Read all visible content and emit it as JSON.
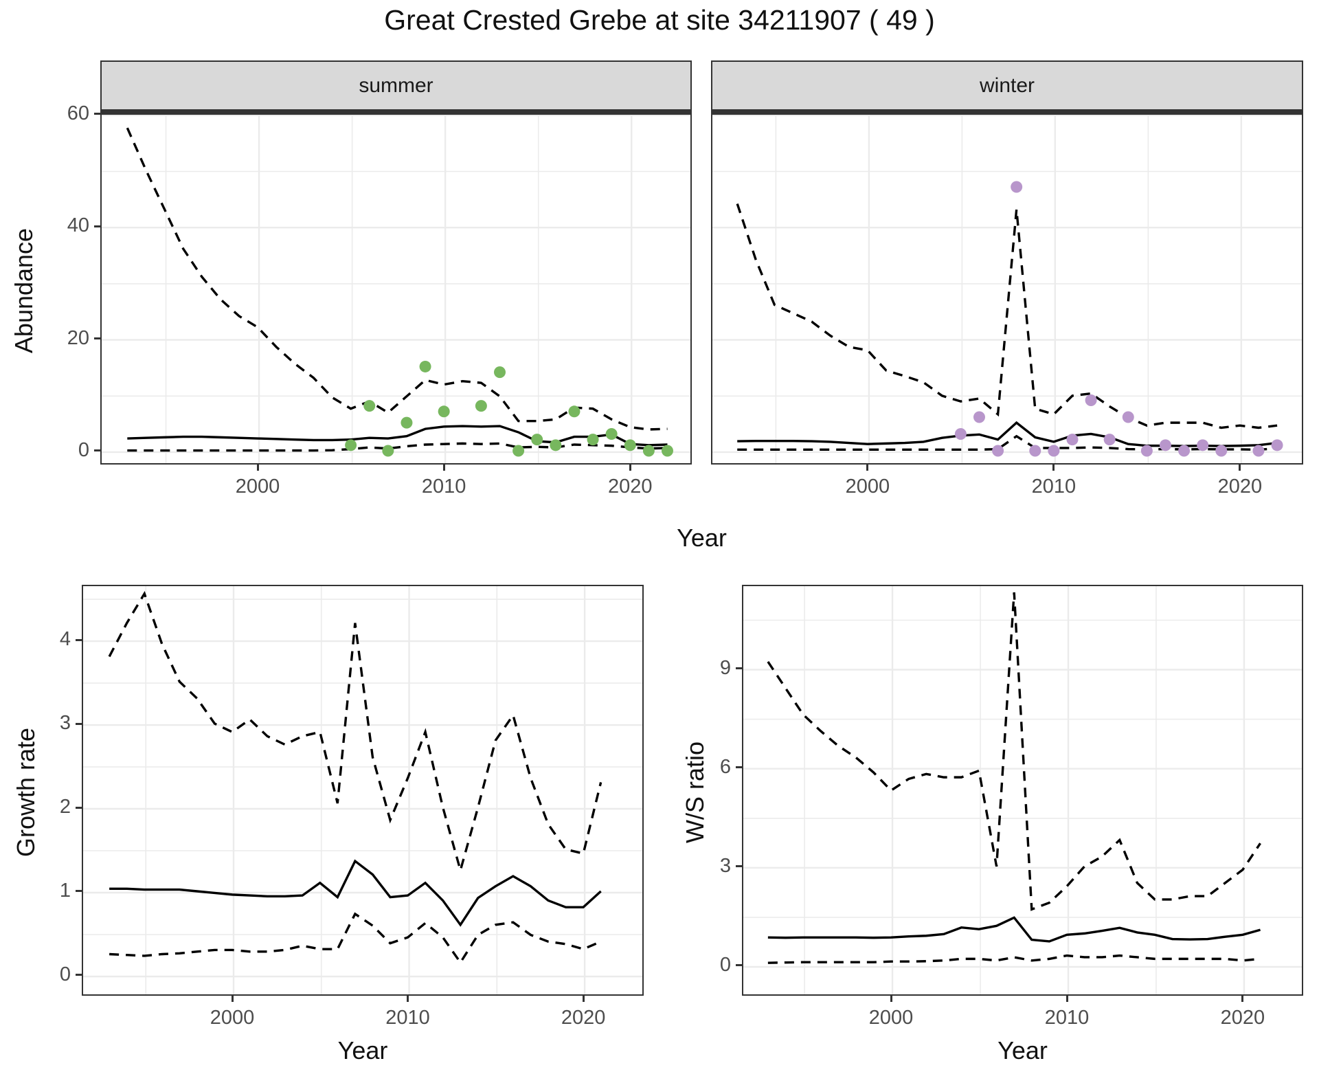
{
  "title": "Great Crested Grebe at site 34211907 ( 49 )",
  "facets": [
    {
      "label": "summer"
    },
    {
      "label": "winter"
    }
  ],
  "axis_titles": {
    "x": "Year",
    "y_abundance": "Abundance",
    "y_growth": "Growth rate",
    "y_ws": "W/S ratio"
  },
  "colors": {
    "summer_point": "#77b75e",
    "winter_point": "#b896cb",
    "line": "#000000",
    "strip_bg": "#d9d9d9",
    "panel_border": "#333333",
    "grid": "#ebebeb",
    "tick_text": "#4d4d4d"
  },
  "chart_data": [
    {
      "id": "abundance-summer",
      "type": "line",
      "facet": "summer",
      "ylabel": "Abundance",
      "xlabel": "Year",
      "xlim": [
        1991.55,
        2023.31
      ],
      "ylim": [
        -2.45,
        60.1
      ],
      "x_ticks": [
        2000,
        2010,
        2020
      ],
      "x_minor": [
        1995,
        2005,
        2015
      ],
      "y_ticks": [
        0,
        20,
        40,
        60
      ],
      "y_minor": [
        10,
        30,
        50
      ],
      "series": [
        {
          "name": "upper_ci",
          "style": "dashed",
          "x": [
            1993,
            1994,
            1995,
            1996,
            1997,
            1998,
            1999,
            2000,
            2001,
            2002,
            2003,
            2004,
            2005,
            2006,
            2007,
            2008,
            2009,
            2010,
            2011,
            2012,
            2013,
            2014,
            2015,
            2016,
            2017,
            2018,
            2019,
            2020,
            2021,
            2022
          ],
          "y": [
            57.5,
            50,
            43,
            36,
            31,
            27,
            24,
            22,
            18.5,
            15.5,
            13,
            9.5,
            7.5,
            8.8,
            6.8,
            9.7,
            12.6,
            11.8,
            12.4,
            12.1,
            9.7,
            5.3,
            5.3,
            5.6,
            7.7,
            7.5,
            5.6,
            4.2,
            3.8,
            3.9
          ]
        },
        {
          "name": "estimate",
          "style": "solid",
          "x": [
            1993,
            1994,
            1995,
            1996,
            1997,
            1998,
            1999,
            2000,
            2001,
            2002,
            2003,
            2004,
            2005,
            2006,
            2007,
            2008,
            2009,
            2010,
            2011,
            2012,
            2013,
            2014,
            2015,
            2016,
            2017,
            2018,
            2019,
            2020,
            2021,
            2022
          ],
          "y": [
            2.2,
            2.3,
            2.4,
            2.5,
            2.5,
            2.4,
            2.3,
            2.2,
            2.1,
            2.0,
            1.9,
            1.9,
            2.0,
            2.3,
            2.2,
            2.6,
            3.9,
            4.3,
            4.4,
            4.3,
            4.4,
            3.3,
            1.7,
            1.5,
            2.5,
            2.5,
            2.9,
            1.2,
            1.0,
            1.1
          ]
        },
        {
          "name": "lower_ci",
          "style": "dashed",
          "x": [
            1993,
            1994,
            1995,
            1996,
            1997,
            1998,
            1999,
            2000,
            2001,
            2002,
            2003,
            2004,
            2005,
            2006,
            2007,
            2008,
            2009,
            2010,
            2011,
            2012,
            2013,
            2014,
            2015,
            2016,
            2017,
            2018,
            2019,
            2020,
            2021,
            2022
          ],
          "y": [
            0.05,
            0.05,
            0.05,
            0.05,
            0.05,
            0.05,
            0.05,
            0.05,
            0.05,
            0.05,
            0.05,
            0.1,
            0.3,
            0.6,
            0.4,
            0.8,
            1.1,
            1.2,
            1.3,
            1.2,
            1.3,
            0.6,
            0.7,
            0.6,
            1.1,
            1.0,
            0.9,
            0.6,
            0.4,
            0.5
          ]
        }
      ],
      "points": {
        "name": "observed_summer_counts",
        "color_key": "summer_point",
        "x": [
          2005,
          2006,
          2007,
          2008,
          2009,
          2010,
          2012,
          2013,
          2014,
          2015,
          2016,
          2017,
          2018,
          2019,
          2020,
          2021,
          2022
        ],
        "y": [
          1,
          8,
          0,
          5,
          15,
          7,
          8,
          14,
          0,
          2,
          1,
          7,
          2,
          3,
          1,
          0,
          0
        ]
      }
    },
    {
      "id": "abundance-winter",
      "type": "line",
      "facet": "winter",
      "ylabel": "Abundance",
      "xlabel": "Year",
      "xlim": [
        1991.59,
        2023.4
      ],
      "ylim": [
        -2.45,
        60.1
      ],
      "x_ticks": [
        2000,
        2010,
        2020
      ],
      "x_minor": [
        1995,
        2005,
        2015
      ],
      "y_ticks": [
        0,
        20,
        40,
        60
      ],
      "y_minor": [
        10,
        30,
        50
      ],
      "series": [
        {
          "name": "upper_ci",
          "style": "dashed",
          "x": [
            1993,
            1994,
            1995,
            1996,
            1997,
            1998,
            1999,
            2000,
            2001,
            2002,
            2003,
            2004,
            2005,
            2006,
            2007,
            2008,
            2009,
            2010,
            2011,
            2012,
            2013,
            2014,
            2015,
            2016,
            2017,
            2018,
            2019,
            2020,
            2021,
            2022
          ],
          "y": [
            44,
            34,
            26,
            24.5,
            23,
            20.5,
            18.5,
            17.9,
            14.3,
            13.3,
            12.2,
            9.8,
            8.8,
            9.3,
            6.5,
            43,
            7.5,
            6.5,
            9.8,
            10.2,
            7.9,
            5.9,
            4.5,
            5.0,
            5.0,
            5.0,
            4.1,
            4.5,
            4.1,
            4.5
          ]
        },
        {
          "name": "estimate",
          "style": "solid",
          "x": [
            1993,
            1994,
            1995,
            1996,
            1997,
            1998,
            1999,
            2000,
            2001,
            2002,
            2003,
            2004,
            2005,
            2006,
            2007,
            2008,
            2009,
            2010,
            2011,
            2012,
            2013,
            2014,
            2015,
            2016,
            2017,
            2018,
            2019,
            2020,
            2021,
            2022
          ],
          "y": [
            1.7,
            1.75,
            1.75,
            1.75,
            1.7,
            1.6,
            1.4,
            1.2,
            1.3,
            1.4,
            1.6,
            2.3,
            2.7,
            2.9,
            2.0,
            5.0,
            2.4,
            1.6,
            2.7,
            3.0,
            2.4,
            1.2,
            0.9,
            0.9,
            0.85,
            0.9,
            0.85,
            0.9,
            1.0,
            1.4
          ]
        },
        {
          "name": "lower_ci",
          "style": "dashed",
          "x": [
            1993,
            1994,
            1995,
            1996,
            1997,
            1998,
            1999,
            2000,
            2001,
            2002,
            2003,
            2004,
            2005,
            2006,
            2007,
            2008,
            2009,
            2010,
            2011,
            2012,
            2013,
            2014,
            2015,
            2016,
            2017,
            2018,
            2019,
            2020,
            2021,
            2022
          ],
          "y": [
            0.2,
            0.2,
            0.2,
            0.2,
            0.2,
            0.2,
            0.2,
            0.2,
            0.2,
            0.2,
            0.2,
            0.2,
            0.2,
            0.2,
            0.3,
            2.6,
            0.5,
            0.5,
            0.5,
            0.6,
            0.5,
            0.3,
            0.25,
            0.3,
            0.25,
            0.3,
            0.25,
            0.25,
            0.2,
            0.4
          ]
        }
      ],
      "points": {
        "name": "observed_winter_counts",
        "color_key": "winter_point",
        "x": [
          2005,
          2006,
          2007,
          2008,
          2009,
          2010,
          2011,
          2012,
          2013,
          2014,
          2015,
          2016,
          2017,
          2018,
          2019,
          2021,
          2022
        ],
        "y": [
          3,
          6,
          0,
          47,
          0,
          0,
          2,
          9,
          2,
          6,
          0,
          1,
          0,
          1,
          0,
          0,
          1
        ]
      }
    },
    {
      "id": "growth-rate",
      "type": "line",
      "ylabel": "Growth rate",
      "xlabel": "Year",
      "xlim": [
        1991.43,
        2023.44
      ],
      "ylim": [
        -0.246,
        4.656
      ],
      "x_ticks": [
        2000,
        2010,
        2020
      ],
      "x_minor": [
        1995,
        2005,
        2015
      ],
      "y_ticks": [
        0,
        1,
        2,
        3,
        4
      ],
      "y_minor": [
        0.5,
        1.5,
        2.5,
        3.5,
        4.5
      ],
      "series": [
        {
          "name": "upper_ci",
          "style": "dashed",
          "x": [
            1993,
            1994,
            1995,
            1996,
            1997,
            1998,
            1999,
            2000,
            2001,
            2002,
            2003,
            2004,
            2005,
            2006,
            2007,
            2008,
            2009,
            2010,
            2011,
            2012,
            2013,
            2014,
            2015,
            2016,
            2017,
            2018,
            2019,
            2020,
            2021
          ],
          "y": [
            3.8,
            4.2,
            4.55,
            3.95,
            3.5,
            3.3,
            3.0,
            2.9,
            3.05,
            2.85,
            2.75,
            2.85,
            2.9,
            2.05,
            4.2,
            2.6,
            1.85,
            2.35,
            2.9,
            2.0,
            1.25,
            2.0,
            2.8,
            3.1,
            2.35,
            1.8,
            1.5,
            1.45,
            2.3
          ]
        },
        {
          "name": "estimate",
          "style": "solid",
          "x": [
            1993,
            1994,
            1995,
            1996,
            1997,
            1998,
            1999,
            2000,
            2001,
            2002,
            2003,
            2004,
            2005,
            2006,
            2007,
            2008,
            2009,
            2010,
            2011,
            2012,
            2013,
            2014,
            2015,
            2016,
            2017,
            2018,
            2019,
            2020,
            2021
          ],
          "y": [
            1.03,
            1.03,
            1.02,
            1.02,
            1.02,
            1.0,
            0.98,
            0.96,
            0.95,
            0.94,
            0.94,
            0.95,
            1.1,
            0.93,
            1.36,
            1.2,
            0.93,
            0.95,
            1.1,
            0.89,
            0.6,
            0.92,
            1.06,
            1.18,
            1.06,
            0.89,
            0.81,
            0.81,
            1.0
          ]
        },
        {
          "name": "lower_ci",
          "style": "dashed",
          "x": [
            1993,
            1994,
            1995,
            1996,
            1997,
            1998,
            1999,
            2000,
            2001,
            2002,
            2003,
            2004,
            2005,
            2006,
            2007,
            2008,
            2009,
            2010,
            2011,
            2012,
            2013,
            2014,
            2015,
            2016,
            2017,
            2018,
            2019,
            2020,
            2021
          ],
          "y": [
            0.25,
            0.24,
            0.23,
            0.25,
            0.26,
            0.28,
            0.3,
            0.3,
            0.28,
            0.28,
            0.3,
            0.35,
            0.31,
            0.31,
            0.73,
            0.59,
            0.38,
            0.45,
            0.62,
            0.45,
            0.15,
            0.48,
            0.6,
            0.63,
            0.48,
            0.4,
            0.37,
            0.31,
            0.4
          ]
        }
      ]
    },
    {
      "id": "ws-ratio",
      "type": "line",
      "ylabel": "W/S ratio",
      "xlabel": "Year",
      "xlim": [
        1991.52,
        2023.44
      ],
      "ylim": [
        -0.916,
        11.53
      ],
      "x_ticks": [
        2000,
        2010,
        2020
      ],
      "x_minor": [
        1995,
        2005,
        2015
      ],
      "y_ticks": [
        0,
        3,
        6,
        9
      ],
      "y_minor": [
        1.5,
        4.5,
        7.5,
        10.5
      ],
      "series": [
        {
          "name": "upper_ci",
          "style": "dashed",
          "x": [
            1993,
            1994,
            1995,
            1996,
            1997,
            1998,
            1999,
            2000,
            2001,
            2002,
            2003,
            2004,
            2005,
            2006,
            2007,
            2008,
            2009,
            2010,
            2011,
            2012,
            2013,
            2014,
            2015,
            2016,
            2017,
            2018,
            2019,
            2020,
            2021
          ],
          "y": [
            9.2,
            8.4,
            7.6,
            7.1,
            6.65,
            6.3,
            5.85,
            5.3,
            5.65,
            5.8,
            5.7,
            5.7,
            5.9,
            3.0,
            11.3,
            1.7,
            1.9,
            2.4,
            3.0,
            3.3,
            3.8,
            2.5,
            2.0,
            2.0,
            2.1,
            2.1,
            2.5,
            2.9,
            3.7
          ]
        },
        {
          "name": "estimate",
          "style": "solid",
          "x": [
            1993,
            1994,
            1995,
            1996,
            1997,
            1998,
            1999,
            2000,
            2001,
            2002,
            2003,
            2004,
            2005,
            2006,
            2007,
            2008,
            2009,
            2010,
            2011,
            2012,
            2013,
            2014,
            2015,
            2016,
            2017,
            2018,
            2019,
            2020,
            2021
          ],
          "y": [
            0.85,
            0.84,
            0.85,
            0.85,
            0.85,
            0.85,
            0.84,
            0.85,
            0.88,
            0.9,
            0.95,
            1.15,
            1.1,
            1.2,
            1.45,
            0.78,
            0.73,
            0.93,
            0.97,
            1.05,
            1.14,
            1.0,
            0.93,
            0.8,
            0.79,
            0.8,
            0.87,
            0.93,
            1.08
          ]
        },
        {
          "name": "lower_ci",
          "style": "dashed",
          "x": [
            1993,
            1994,
            1995,
            1996,
            1997,
            1998,
            1999,
            2000,
            2001,
            2002,
            2003,
            2004,
            2005,
            2006,
            2007,
            2008,
            2009,
            2010,
            2011,
            2012,
            2013,
            2014,
            2015,
            2016,
            2017,
            2018,
            2019,
            2020,
            2021
          ],
          "y": [
            0.08,
            0.09,
            0.1,
            0.1,
            0.1,
            0.1,
            0.1,
            0.12,
            0.12,
            0.13,
            0.15,
            0.2,
            0.2,
            0.15,
            0.25,
            0.15,
            0.2,
            0.3,
            0.25,
            0.25,
            0.3,
            0.25,
            0.2,
            0.2,
            0.2,
            0.2,
            0.2,
            0.15,
            0.2
          ]
        }
      ]
    }
  ]
}
